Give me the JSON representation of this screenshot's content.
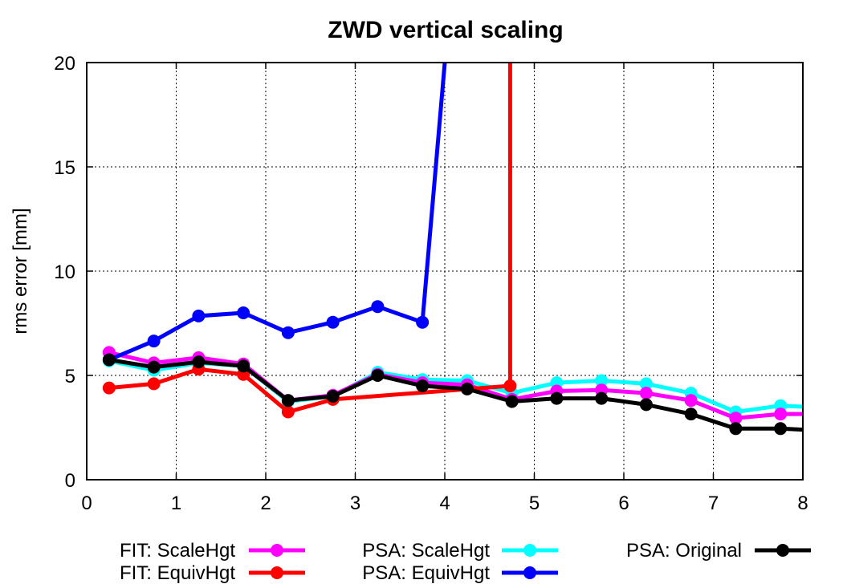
{
  "chart_data": {
    "type": "line",
    "title": "ZWD vertical scaling",
    "xlabel": "",
    "ylabel": "rms error [mm]",
    "xlim": [
      0,
      8
    ],
    "ylim": [
      0,
      20
    ],
    "xticks": [
      "0",
      "1",
      "2",
      "3",
      "4",
      "5",
      "6",
      "7",
      "8"
    ],
    "yticks": [
      "0",
      "5",
      "10",
      "15",
      "20"
    ],
    "grid": true,
    "legend_position": "bottom",
    "series": [
      {
        "name": "FIT: ScaleHgt",
        "color": "#ff00ff",
        "x": [
          0.25,
          0.75,
          1.25,
          1.75,
          2.25,
          2.75,
          3.25,
          3.75,
          4.25,
          4.75,
          5.25,
          5.75,
          6.25,
          6.75,
          7.25,
          7.75,
          8.0
        ],
        "y": [
          6.1,
          5.6,
          5.85,
          5.55,
          3.8,
          4.05,
          5.05,
          4.65,
          4.55,
          3.85,
          4.25,
          4.3,
          4.15,
          3.8,
          2.95,
          3.15,
          3.15
        ]
      },
      {
        "name": "FIT: EquivHgt",
        "color": "#ff0000",
        "x": [
          0.25,
          0.75,
          1.25,
          1.75,
          2.25,
          2.75,
          4.73,
          4.73
        ],
        "y": [
          4.4,
          4.6,
          5.3,
          5.05,
          3.25,
          3.85,
          4.5,
          20.0
        ]
      },
      {
        "name": "PSA: ScaleHgt",
        "color": "#00ffff",
        "x": [
          0.25,
          0.75,
          1.25,
          1.75,
          2.25,
          2.75,
          3.25,
          3.75,
          4.25,
          4.75,
          5.25,
          5.75,
          6.25,
          6.75,
          7.25,
          7.75,
          8.0
        ],
        "y": [
          5.7,
          5.25,
          5.6,
          5.45,
          3.75,
          4.0,
          5.15,
          4.8,
          4.75,
          4.15,
          4.65,
          4.75,
          4.6,
          4.15,
          3.25,
          3.55,
          3.5
        ]
      },
      {
        "name": "PSA: EquivHgt",
        "color": "#0000ff",
        "x": [
          0.25,
          0.75,
          1.25,
          1.75,
          2.25,
          2.75,
          3.25,
          3.75,
          4.0
        ],
        "y": [
          5.75,
          6.65,
          7.85,
          8.0,
          7.05,
          7.55,
          8.3,
          7.55,
          20.0
        ]
      },
      {
        "name": "PSA: Original",
        "color": "#000000",
        "x": [
          0.25,
          0.75,
          1.25,
          1.75,
          2.25,
          2.75,
          3.25,
          3.75,
          4.25,
          4.75,
          5.25,
          5.75,
          6.25,
          6.75,
          7.25,
          7.75,
          8.0
        ],
        "y": [
          5.75,
          5.4,
          5.65,
          5.45,
          3.8,
          4.0,
          5.0,
          4.5,
          4.35,
          3.75,
          3.9,
          3.9,
          3.6,
          3.15,
          2.45,
          2.45,
          2.4
        ]
      }
    ]
  }
}
